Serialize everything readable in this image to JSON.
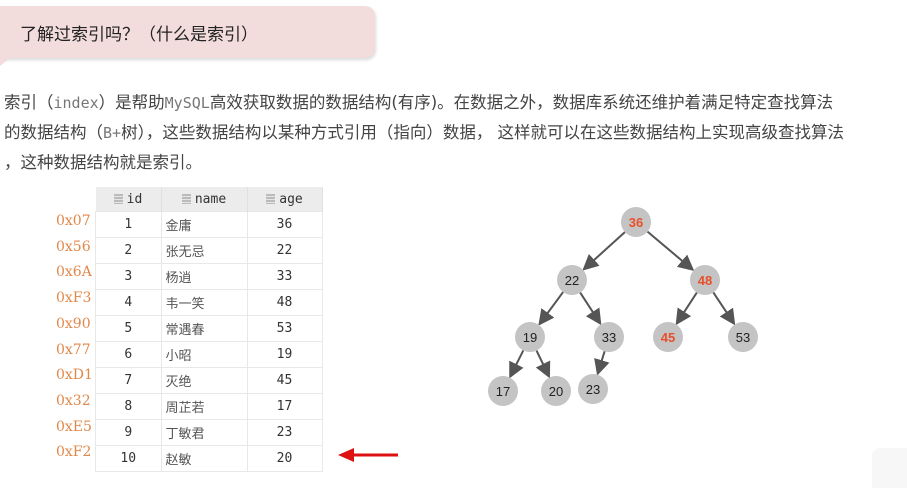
{
  "title": "了解过索引吗？（什么是索引）",
  "paragraph": {
    "line1_a": "索引（",
    "line1_mono": "index",
    "line1_b": "）是帮助",
    "line1_mono2": "MySQL",
    "line1_c": "高效获取数据的数据结构(有序)。在数据之外，数据库系统还维护着满足特定查找算法",
    "line2_a": "的数据结构（",
    "line2_mono": "B+",
    "line2_b": "树），这些数据结构以某种方式引用（指向）数据，  这样就可以在这些数据结构上实现高级查找算法",
    "line3": "，这种数据结构就是索引。"
  },
  "table": {
    "headers": [
      "id",
      "name",
      "age"
    ],
    "rows": [
      {
        "addr": "0x07",
        "id": "1",
        "name": "金庸",
        "age": "36"
      },
      {
        "addr": "0x56",
        "id": "2",
        "name": "张无忌",
        "age": "22"
      },
      {
        "addr": "0x6A",
        "id": "3",
        "name": "杨逍",
        "age": "33"
      },
      {
        "addr": "0xF3",
        "id": "4",
        "name": "韦一笑",
        "age": "48"
      },
      {
        "addr": "0x90",
        "id": "5",
        "name": "常遇春",
        "age": "53"
      },
      {
        "addr": "0x77",
        "id": "6",
        "name": "小昭",
        "age": "19"
      },
      {
        "addr": "0xD1",
        "id": "7",
        "name": "灭绝",
        "age": "45"
      },
      {
        "addr": "0x32",
        "id": "8",
        "name": "周芷若",
        "age": "17"
      },
      {
        "addr": "0xE5",
        "id": "9",
        "name": "丁敏君",
        "age": "23"
      },
      {
        "addr": "0xF2",
        "id": "10",
        "name": "赵敏",
        "age": "20"
      }
    ],
    "highlighted_row": 9
  },
  "tree": {
    "nodes": [
      {
        "id": "n36",
        "label": "36",
        "highlight": true
      },
      {
        "id": "n22",
        "label": "22",
        "highlight": false
      },
      {
        "id": "n48",
        "label": "48",
        "highlight": true
      },
      {
        "id": "n19",
        "label": "19",
        "highlight": false
      },
      {
        "id": "n33",
        "label": "33",
        "highlight": false
      },
      {
        "id": "n45",
        "label": "45",
        "highlight": true
      },
      {
        "id": "n53",
        "label": "53",
        "highlight": false
      },
      {
        "id": "n17",
        "label": "17",
        "highlight": false
      },
      {
        "id": "n20",
        "label": "20",
        "highlight": false
      },
      {
        "id": "n23",
        "label": "23",
        "highlight": false
      }
    ],
    "edges": [
      [
        "n36",
        "n22"
      ],
      [
        "n36",
        "n48"
      ],
      [
        "n22",
        "n19"
      ],
      [
        "n22",
        "n33"
      ],
      [
        "n48",
        "n45"
      ],
      [
        "n48",
        "n53"
      ],
      [
        "n19",
        "n17"
      ],
      [
        "n19",
        "n20"
      ],
      [
        "n33",
        "n23"
      ]
    ]
  },
  "colors": {
    "bubble": "#f3dcdc",
    "address": "#e0884a",
    "highlight": "#e8502a",
    "node": "#c4c4c4",
    "arrow": "#dd1111"
  }
}
